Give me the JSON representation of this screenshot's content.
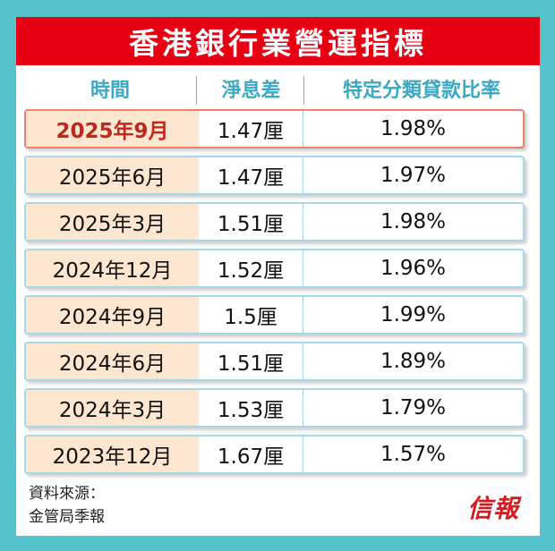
{
  "title": "香港銀行業營運指標",
  "headers": {
    "period": "時間",
    "nim": "淨息差",
    "sml_ratio": "特定分類貸款比率"
  },
  "rows": [
    {
      "period": "2025年9月",
      "nim": "1.47厘",
      "sml_ratio": "1.98%",
      "highlight": true
    },
    {
      "period": "2025年6月",
      "nim": "1.47厘",
      "sml_ratio": "1.97%"
    },
    {
      "period": "2025年3月",
      "nim": "1.51厘",
      "sml_ratio": "1.98%"
    },
    {
      "period": "2024年12月",
      "nim": "1.52厘",
      "sml_ratio": "1.96%"
    },
    {
      "period": "2024年9月",
      "nim": "1.5厘",
      "sml_ratio": "1.99%"
    },
    {
      "period": "2024年6月",
      "nim": "1.51厘",
      "sml_ratio": "1.89%"
    },
    {
      "period": "2024年3月",
      "nim": "1.53厘",
      "sml_ratio": "1.79%"
    },
    {
      "period": "2023年12月",
      "nim": "1.67厘",
      "sml_ratio": "1.57%"
    }
  ],
  "source": {
    "label": "資料來源：",
    "name": "金管局季報"
  },
  "logo": "信報",
  "colors": {
    "background": "#55c3cc",
    "title_bar": "#e60012",
    "header_text": "#3aa9c4",
    "row_border": "#a7d8ea",
    "highlight_border": "#e9836e",
    "highlight_text": "#c0281d",
    "period_cell": "#fde6cf"
  }
}
